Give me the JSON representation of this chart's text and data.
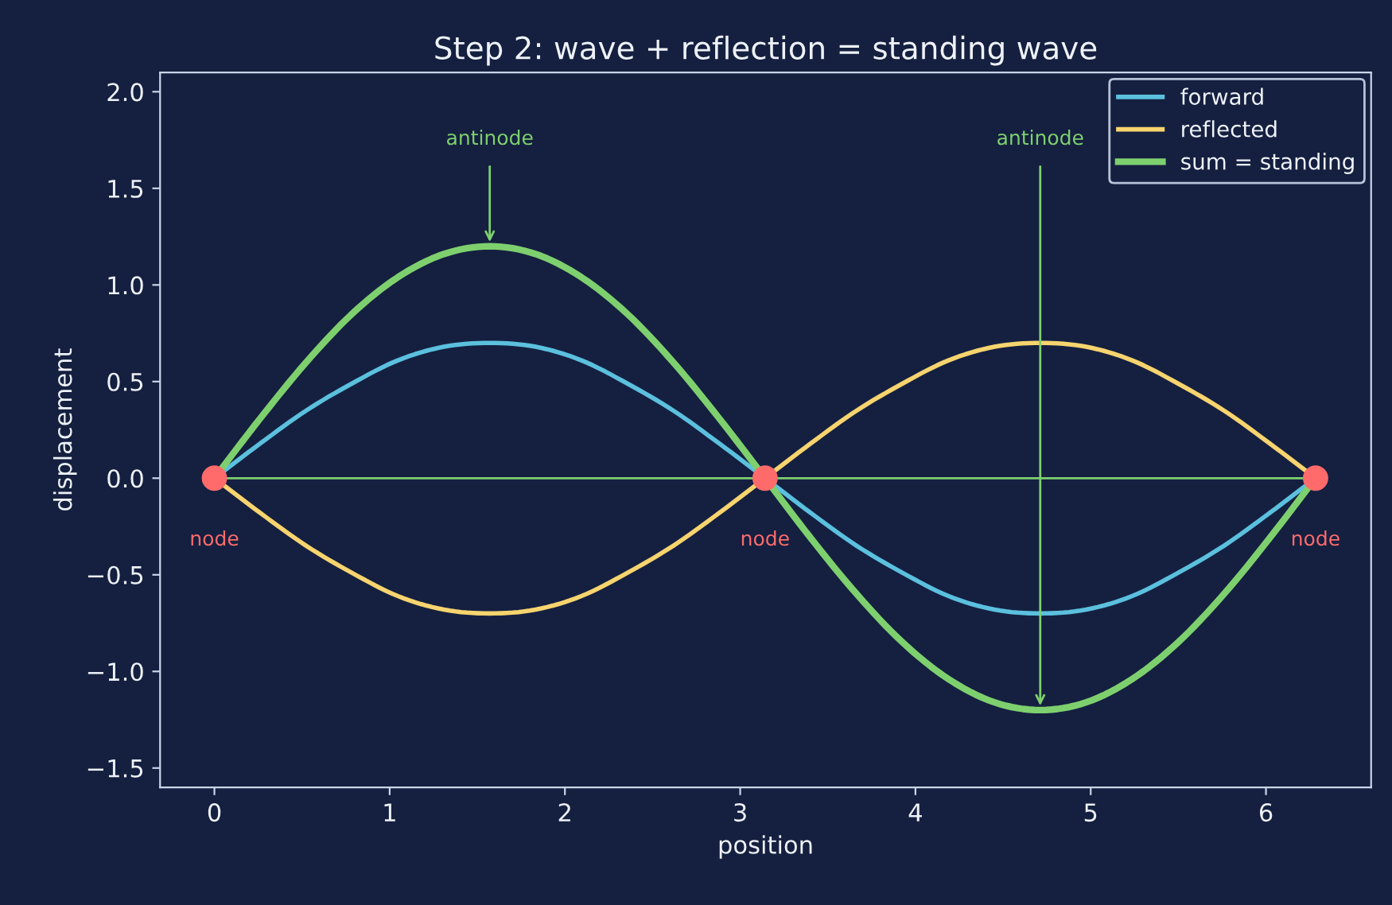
{
  "chart_data": {
    "type": "line",
    "title": "Step 2: wave + reflection = standing wave",
    "xlabel": "position",
    "ylabel": "displacement",
    "x": [
      0,
      0.262,
      0.524,
      0.785,
      1.047,
      1.309,
      1.571,
      1.833,
      2.094,
      2.356,
      2.618,
      2.88,
      3.142,
      3.403,
      3.665,
      3.927,
      4.189,
      4.451,
      4.712,
      4.974,
      5.236,
      5.498,
      5.76,
      6.021,
      6.283
    ],
    "series": [
      {
        "name": "forward",
        "color": "#5bc0de",
        "values": [
          0,
          0.18,
          0.35,
          0.49,
          0.61,
          0.68,
          0.7,
          0.68,
          0.61,
          0.49,
          0.35,
          0.18,
          0,
          -0.18,
          -0.35,
          -0.49,
          -0.61,
          -0.68,
          -0.7,
          -0.68,
          -0.61,
          -0.49,
          -0.35,
          -0.18,
          0
        ]
      },
      {
        "name": "reflected",
        "color": "#f7d46e",
        "values": [
          0,
          -0.18,
          -0.35,
          -0.49,
          -0.61,
          -0.68,
          -0.7,
          -0.68,
          -0.61,
          -0.49,
          -0.35,
          -0.18,
          0,
          0.18,
          0.35,
          0.49,
          0.61,
          0.68,
          0.7,
          0.68,
          0.61,
          0.49,
          0.35,
          0.18,
          0
        ]
      },
      {
        "name": "sum = standing",
        "color": "#7ed06e",
        "values": [
          0,
          0.31,
          0.6,
          0.85,
          1.04,
          1.16,
          1.2,
          1.16,
          1.04,
          0.85,
          0.6,
          0.31,
          0,
          -0.31,
          -0.6,
          -0.85,
          -1.04,
          -1.16,
          -1.2,
          -1.16,
          -1.04,
          -0.85,
          -0.6,
          -0.31,
          0
        ]
      },
      {
        "color": "#7ed06e",
        "x": [
          0,
          6.283
        ],
        "values": [
          0,
          0
        ]
      },
      {
        "type": "scatter",
        "marker": "circle",
        "color": "#ff6b6b",
        "x": [
          0,
          3.142,
          6.283
        ],
        "values": [
          0,
          0,
          0
        ]
      }
    ],
    "annotations": [
      {
        "text": "antinode",
        "x": 1.571,
        "y": 1.2
      },
      {
        "text": "antinode",
        "x": 4.712,
        "y": -1.2
      },
      {
        "text": "node",
        "x": 0,
        "y": 0
      },
      {
        "text": "node",
        "x": 3.142,
        "y": 0
      },
      {
        "text": "node",
        "x": 6.283,
        "y": 0
      }
    ],
    "xlim": [
      -0.31,
      6.6
    ],
    "ylim": [
      -1.6,
      2.1
    ],
    "xticks": [
      0,
      1,
      2,
      3,
      4,
      5,
      6
    ],
    "yticks": [
      {
        "value": -1.5,
        "label": "−1.5"
      },
      {
        "value": -1.0,
        "label": "−1.0"
      },
      {
        "value": -0.5,
        "label": "−0.5"
      },
      {
        "value": 0,
        "label": "0.0"
      },
      {
        "value": 0.5,
        "label": "0.5"
      },
      {
        "value": 1.0,
        "label": "1.0"
      },
      {
        "value": 1.5,
        "label": "1.5"
      },
      {
        "value": 2.0,
        "label": "2.0"
      }
    ],
    "grid": false,
    "legend": "upper right"
  }
}
